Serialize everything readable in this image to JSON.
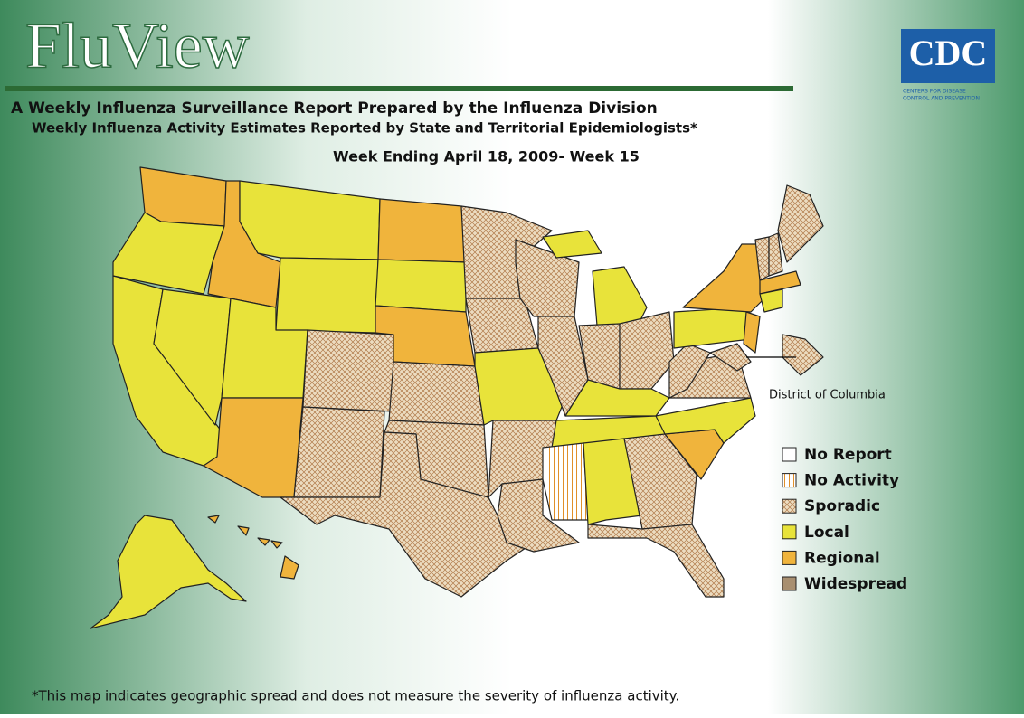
{
  "header": {
    "title": "FluView",
    "line1": "A Weekly Influenza Surveillance Report Prepared by the Influenza Division",
    "line2": "Weekly Influenza Activity Estimates Reported by State and Territorial Epidemiologists*",
    "week": "Week Ending April 18, 2009- Week 15"
  },
  "logo": {
    "text": "CDC",
    "line1": "Centers for Disease",
    "line2": "Control and Prevention"
  },
  "map": {
    "dc_label": "District of Columbia"
  },
  "legend": [
    "No Report",
    "No Activity",
    "Sporadic",
    "Local",
    "Regional",
    "Widespread"
  ],
  "footnote": "*This map indicates geographic spread and does not measure the severity of influenza activity."
}
